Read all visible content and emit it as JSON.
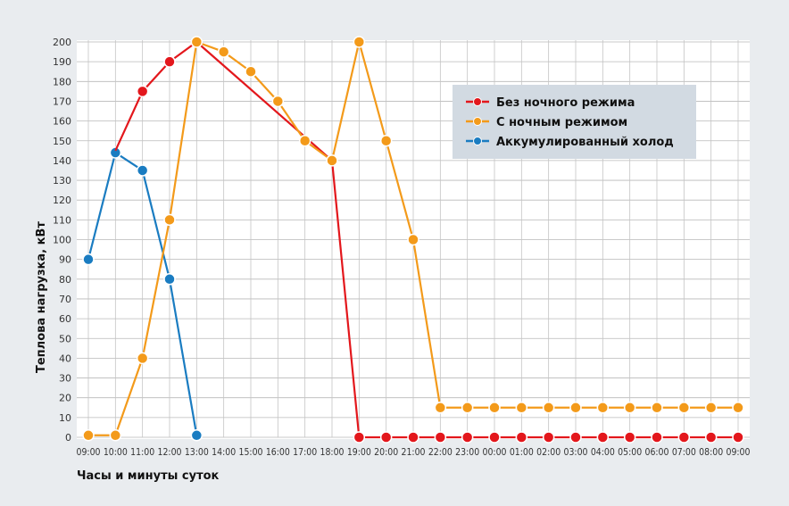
{
  "chart_data": {
    "type": "line",
    "xlabel": "Часы и минуты суток",
    "ylabel": "Теплова нагрузка, кВт",
    "ylim": [
      0,
      200
    ],
    "yticks": [
      0,
      10,
      20,
      30,
      40,
      50,
      60,
      70,
      80,
      90,
      100,
      110,
      120,
      130,
      140,
      150,
      160,
      170,
      180,
      190,
      200
    ],
    "categories": [
      "09:00",
      "10:00",
      "11:00",
      "12:00",
      "13:00",
      "14:00",
      "15:00",
      "16:00",
      "17:00",
      "18:00",
      "19:00",
      "20:00",
      "21:00",
      "22:00",
      "23:00",
      "00:00",
      "01:00",
      "02:00",
      "03:00",
      "04:00",
      "05:00",
      "06:00",
      "07:00",
      "08:00",
      "09:00"
    ],
    "grid": true,
    "legend_position": "top-right",
    "series": [
      {
        "name": "Без ночного режима",
        "color": "#e3171c",
        "values": [
          null,
          145,
          175,
          190,
          200,
          null,
          null,
          null,
          null,
          140,
          0,
          0,
          0,
          0,
          0,
          0,
          0,
          0,
          0,
          0,
          0,
          0,
          0,
          0,
          0
        ],
        "markers": [
          false,
          false,
          true,
          true,
          false,
          false,
          false,
          false,
          false,
          false,
          true,
          true,
          true,
          true,
          true,
          true,
          true,
          true,
          true,
          true,
          true,
          true,
          true,
          true,
          true
        ]
      },
      {
        "name": "С ночным режимом",
        "color": "#f39a1a",
        "values": [
          1,
          1,
          40,
          110,
          200,
          195,
          185,
          170,
          150,
          140,
          200,
          150,
          100,
          15,
          15,
          15,
          15,
          15,
          15,
          15,
          15,
          15,
          15,
          15,
          15
        ],
        "markers": [
          true,
          true,
          true,
          true,
          true,
          true,
          true,
          true,
          true,
          true,
          true,
          true,
          true,
          true,
          true,
          true,
          true,
          true,
          true,
          true,
          true,
          true,
          true,
          true,
          true
        ]
      },
      {
        "name": "Аккумулированный холод",
        "color": "#1a7cc1",
        "values": [
          90,
          144,
          135,
          80,
          1,
          null,
          null,
          null,
          null,
          null,
          null,
          null,
          null,
          null,
          null,
          null,
          null,
          null,
          null,
          null,
          null,
          null,
          null,
          null,
          null
        ],
        "markers": [
          true,
          true,
          true,
          true,
          true,
          false,
          false,
          false,
          false,
          false,
          false,
          false,
          false,
          false,
          false,
          false,
          false,
          false,
          false,
          false,
          false,
          false,
          false,
          false,
          false
        ]
      }
    ]
  }
}
